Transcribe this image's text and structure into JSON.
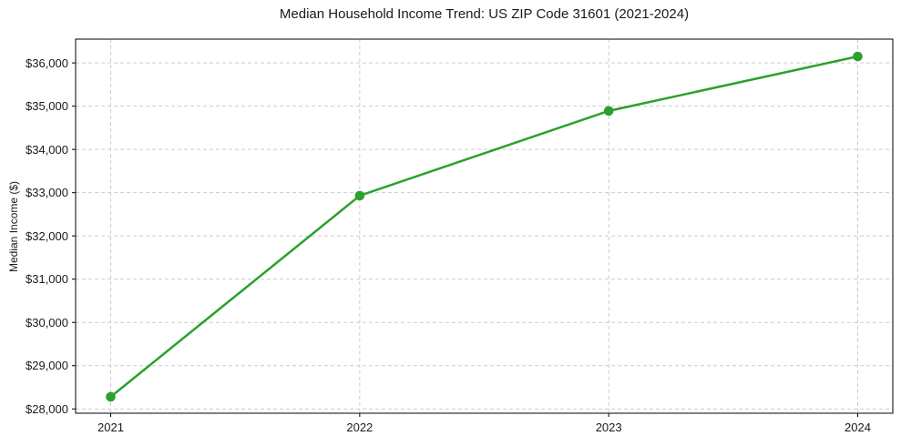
{
  "figure": {
    "background": "#ffffff",
    "text_color": "#1a1a1a",
    "axis_color": "#000000"
  },
  "chart_data": {
    "type": "line",
    "title": "Median Household Income Trend: US ZIP Code 31601 (2021-2024)",
    "xlabel": "",
    "ylabel": "Median Income ($)",
    "x": [
      "2021",
      "2022",
      "2023",
      "2024"
    ],
    "values": [
      28280,
      32930,
      34890,
      36150
    ],
    "ylim": [
      27900,
      36550
    ],
    "yticks": [
      {
        "value": 28000,
        "label": "$28,000"
      },
      {
        "value": 29000,
        "label": "$29,000"
      },
      {
        "value": 30000,
        "label": "$30,000"
      },
      {
        "value": 31000,
        "label": "$31,000"
      },
      {
        "value": 32000,
        "label": "$32,000"
      },
      {
        "value": 33000,
        "label": "$33,000"
      },
      {
        "value": 34000,
        "label": "$34,000"
      },
      {
        "value": 35000,
        "label": "$35,000"
      },
      {
        "value": 36000,
        "label": "$36,000"
      }
    ],
    "line_color": "#2ca02c",
    "marker": "circle",
    "marker_radius": 5.3,
    "line_width": 2.5,
    "grid": {
      "show": true,
      "style": "dashed",
      "color": "#cccccc"
    },
    "legend": "none"
  }
}
